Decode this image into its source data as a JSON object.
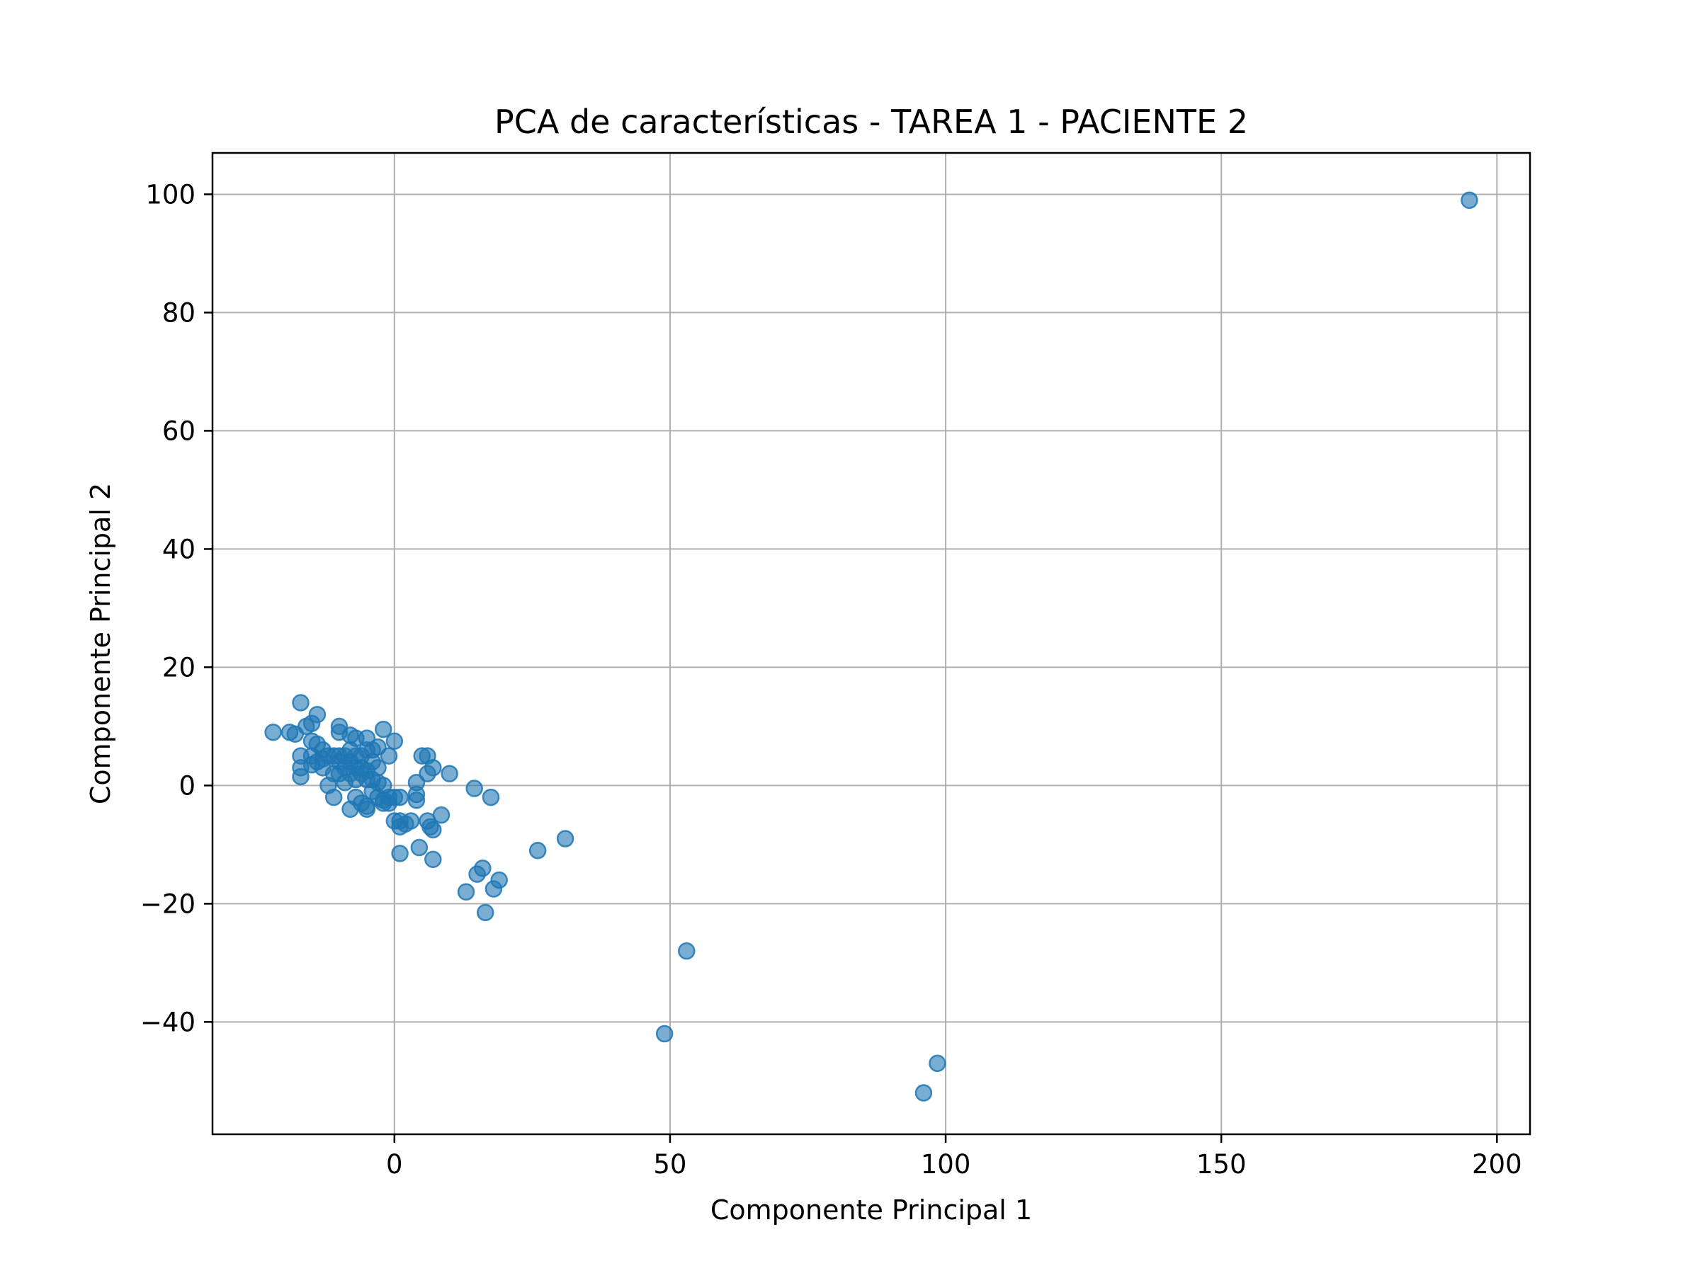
{
  "chart_data": {
    "type": "scatter",
    "title": "PCA de características - TAREA 1 - PACIENTE 2",
    "xlabel": "Componente Principal 1",
    "ylabel": "Componente Principal 2",
    "xlim": [
      -33,
      206
    ],
    "ylim": [
      -59,
      107
    ],
    "xticks": [
      0,
      50,
      100,
      150,
      200
    ],
    "yticks": [
      -40,
      -20,
      0,
      20,
      40,
      60,
      80,
      100
    ],
    "xtick_labels": [
      "0",
      "50",
      "100",
      "150",
      "200"
    ],
    "ytick_labels": [
      "−40",
      "−20",
      "0",
      "20",
      "40",
      "60",
      "80",
      "100"
    ],
    "grid": true,
    "marker_color": "#1f77b4",
    "marker_alpha": 0.6,
    "points": [
      [
        -22,
        9
      ],
      [
        -19,
        9
      ],
      [
        -18,
        8.7
      ],
      [
        -17,
        14
      ],
      [
        -17,
        5
      ],
      [
        -17,
        3
      ],
      [
        -17,
        1.5
      ],
      [
        -16,
        10
      ],
      [
        -15,
        10.5
      ],
      [
        -15,
        7.5
      ],
      [
        -15,
        5
      ],
      [
        -15,
        3.5
      ],
      [
        -14,
        12
      ],
      [
        -14,
        7
      ],
      [
        -14,
        4
      ],
      [
        -13,
        6
      ],
      [
        -13,
        4.5
      ],
      [
        -13,
        3
      ],
      [
        -12,
        0
      ],
      [
        -12,
        5
      ],
      [
        -11,
        5
      ],
      [
        -11,
        2
      ],
      [
        -11,
        -2
      ],
      [
        -10,
        10
      ],
      [
        -10,
        9
      ],
      [
        -10,
        5
      ],
      [
        -10,
        4
      ],
      [
        -10,
        2
      ],
      [
        -9,
        5
      ],
      [
        -9,
        3
      ],
      [
        -9,
        0.5
      ],
      [
        -8,
        8.5
      ],
      [
        -8,
        6
      ],
      [
        -8,
        4
      ],
      [
        -8,
        2
      ],
      [
        -8,
        -4
      ],
      [
        -7,
        8
      ],
      [
        -7,
        5
      ],
      [
        -7,
        3
      ],
      [
        -7,
        1
      ],
      [
        -7,
        -2
      ],
      [
        -6,
        5
      ],
      [
        -6,
        3
      ],
      [
        -6,
        2
      ],
      [
        -6,
        -3
      ],
      [
        -5,
        8
      ],
      [
        -5,
        6
      ],
      [
        -5,
        2.5
      ],
      [
        -5,
        1
      ],
      [
        -5,
        -3.5
      ],
      [
        -5,
        -4
      ],
      [
        -4,
        6
      ],
      [
        -4,
        4
      ],
      [
        -4,
        1
      ],
      [
        -4,
        -1
      ],
      [
        -3,
        6.5
      ],
      [
        -3,
        3
      ],
      [
        -3,
        0.5
      ],
      [
        -3,
        -2
      ],
      [
        -2,
        9.5
      ],
      [
        -2,
        0
      ],
      [
        -2,
        -2.5
      ],
      [
        -2,
        -3
      ],
      [
        -1,
        5
      ],
      [
        -1,
        -2
      ],
      [
        -1,
        -3
      ],
      [
        0,
        7.5
      ],
      [
        0,
        -2
      ],
      [
        0,
        -6
      ],
      [
        1,
        -2
      ],
      [
        1,
        -6
      ],
      [
        1,
        -7
      ],
      [
        1,
        -11.5
      ],
      [
        2,
        -6.5
      ],
      [
        3,
        -6
      ],
      [
        4,
        0.5
      ],
      [
        4,
        -1.5
      ],
      [
        4,
        -2.5
      ],
      [
        5,
        5
      ],
      [
        4.5,
        -10.5
      ],
      [
        6,
        5
      ],
      [
        6,
        -6
      ],
      [
        6,
        2
      ],
      [
        6.5,
        -7
      ],
      [
        7,
        3
      ],
      [
        7,
        -7.5
      ],
      [
        7,
        -12.5
      ],
      [
        8.5,
        -5
      ],
      [
        10,
        2
      ],
      [
        13,
        -18
      ],
      [
        14.5,
        -0.5
      ],
      [
        15,
        -15
      ],
      [
        16,
        -14
      ],
      [
        16.5,
        -21.5
      ],
      [
        17.5,
        -2
      ],
      [
        18,
        -17.5
      ],
      [
        19,
        -16
      ],
      [
        26,
        -11
      ],
      [
        31,
        -9
      ],
      [
        49,
        -42
      ],
      [
        53,
        -28
      ],
      [
        96,
        -52
      ],
      [
        98.5,
        -47
      ],
      [
        195,
        99
      ]
    ]
  }
}
